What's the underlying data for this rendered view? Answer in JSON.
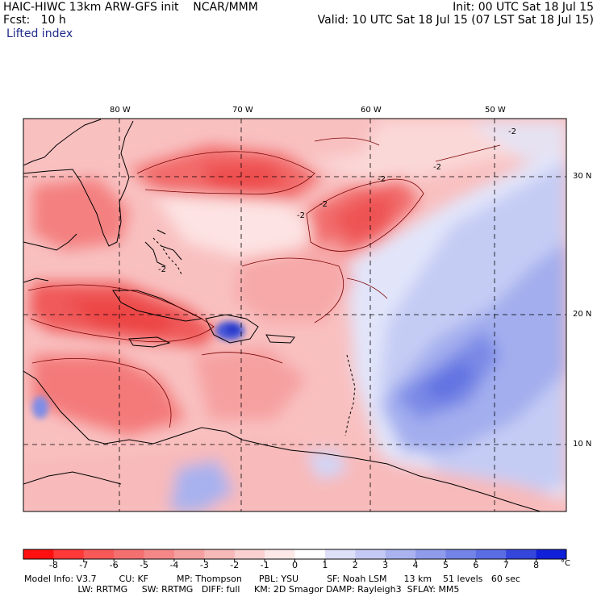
{
  "header": {
    "line1_left": "HAIC-HIWC 13km ARW-GFS init    NCAR/MMM",
    "line1_right": "Init: 00 UTC Sat 18 Jul 15",
    "line2_left": "Fcst:   10 h",
    "line2_right": "Valid: 10 UTC Sat 18 Jul 15 (07 LST Sat 18 Jul 15)",
    "line3_left": "Lifted index"
  },
  "map": {
    "field": "Lifted index",
    "longitude_labels": [
      "80 W",
      "70 W",
      "60 W",
      "50 W"
    ],
    "latitude_labels": [
      "30 N",
      "20 N",
      "10 N"
    ],
    "contour_labels": [
      "-2",
      "-2",
      "-2",
      "-2",
      "-2",
      "-2"
    ],
    "colors": {
      "strong_unstable": "#f04848",
      "unstable": "#f59a9a",
      "weak_unstable": "#fbd2d2",
      "neutral": "#fdf0f0",
      "weak_stable": "#d8dcf6",
      "stable": "#a9b3ee",
      "strong_stable": "#6f7ee6",
      "land_outline": "#000000"
    }
  },
  "colorbar": {
    "labels": [
      "-8",
      "-7",
      "-6",
      "-5",
      "-4",
      "-3",
      "-2",
      "-1",
      "0",
      "1",
      "2",
      "3",
      "4",
      "5",
      "6",
      "7",
      "8"
    ],
    "unit": "°C",
    "colors": [
      "#ff1010",
      "#ff3838",
      "#f85858",
      "#f47070",
      "#f48888",
      "#f5a0a0",
      "#f7b8b8",
      "#fad0d0",
      "#fde8e8",
      "#ffffff",
      "#dde0f8",
      "#c4caf4",
      "#aab3ef",
      "#8f9ceb",
      "#7384e6",
      "#5a6de2",
      "#3446dc",
      "#1020d8"
    ]
  },
  "model_info": {
    "line1": "Model Info: V3.7        CU: KF          MP: Thompson      PBL: YSU          SF: Noah LSM      13 km    51 levels   60 sec",
    "line2": "                   LW: RRTMG     SW: RRTMG   DIFF: full     KM: 2D Smagor DAMP: Rayleigh3  SFLAY: MM5"
  }
}
